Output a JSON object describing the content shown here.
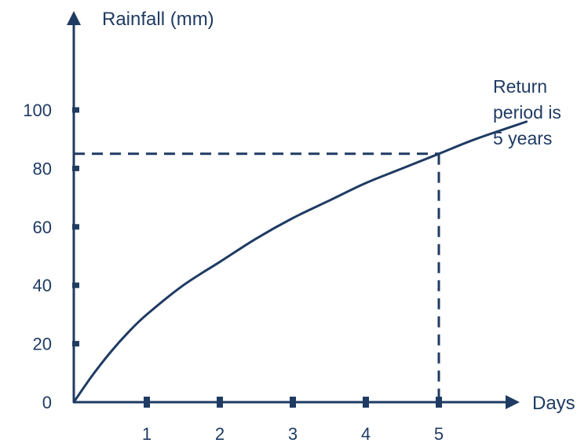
{
  "chart_data": {
    "type": "line",
    "title": "",
    "ylabel": "Rainfall  (mm)",
    "xlabel": "Days",
    "xlim": [
      0,
      6.2
    ],
    "ylim": [
      0,
      100
    ],
    "x_ticks": [
      1,
      2,
      3,
      4,
      5
    ],
    "y_ticks": [
      0,
      20,
      40,
      60,
      80,
      100
    ],
    "grid": false,
    "series": [
      {
        "x": [
          0,
          0.25,
          0.5,
          0.75,
          1,
          1.5,
          2,
          2.5,
          3,
          3.5,
          4,
          4.5,
          5,
          5.5,
          6.2
        ],
        "y": [
          0,
          9,
          17,
          24,
          30,
          40,
          48,
          56,
          63,
          69,
          75,
          80,
          85,
          90,
          96
        ]
      }
    ],
    "reference": {
      "x": 5,
      "y": 85
    },
    "annotation": {
      "lines": [
        "Return",
        "period is",
        "5 years"
      ]
    }
  },
  "colors": {
    "ink": "#1f3b63",
    "background": "#ffffff"
  }
}
